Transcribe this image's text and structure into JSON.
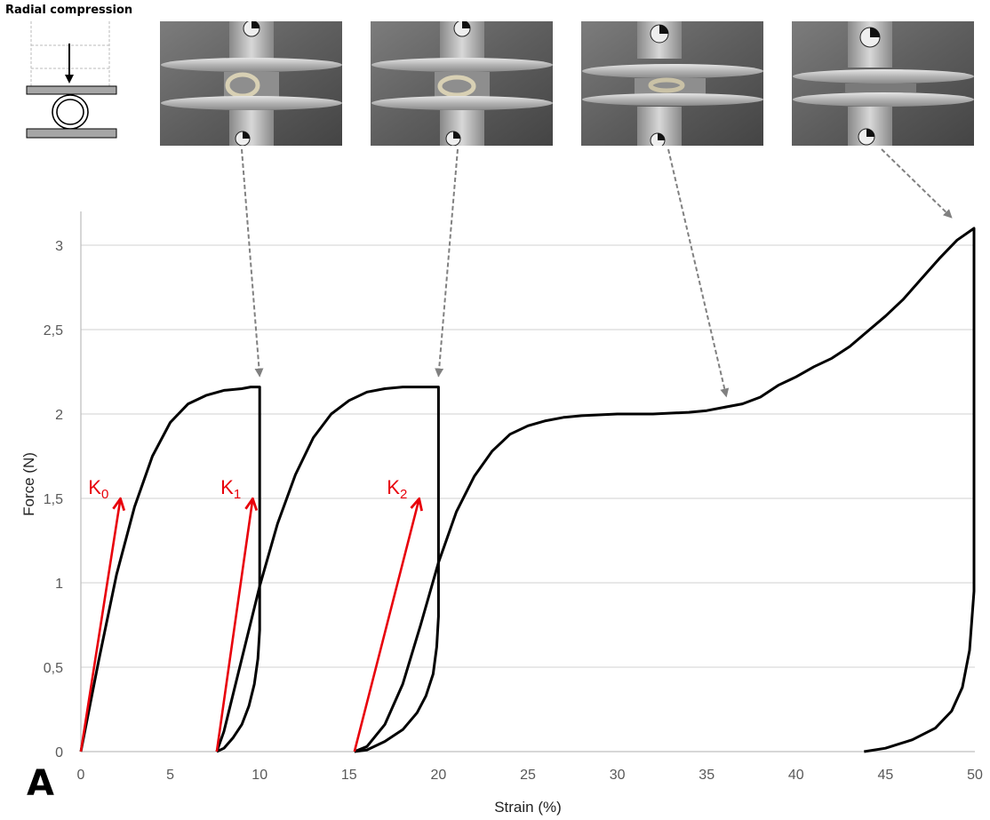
{
  "figure": {
    "heading": "Radial compression",
    "panel_letter": "A"
  },
  "photos": [
    {
      "name": "compression-photo-1",
      "arrow_to": {
        "x": 10,
        "y": 2.16
      }
    },
    {
      "name": "compression-photo-2",
      "arrow_to": {
        "x": 20,
        "y": 2.16
      }
    },
    {
      "name": "compression-photo-3",
      "arrow_to": {
        "x": 36.2,
        "y": 2.04
      }
    },
    {
      "name": "compression-photo-4",
      "arrow_to": {
        "x": 49.2,
        "y": 3.1
      }
    }
  ],
  "colors": {
    "curve": "#000000",
    "stiffness_arrow": "#e8000b",
    "pointer_arrow": "#808080",
    "grid": "#d9d9d9"
  },
  "chart_data": {
    "type": "line",
    "xlabel": "Strain (%)",
    "ylabel": "Force (N)",
    "xlim": [
      0,
      50
    ],
    "ylim": [
      0,
      3.2
    ],
    "xticks": [
      0,
      5,
      10,
      15,
      20,
      25,
      30,
      35,
      40,
      45,
      50
    ],
    "yticks": [
      0,
      0.5,
      1,
      1.5,
      2,
      2.5,
      3
    ],
    "xtick_labels": [
      "0",
      "5",
      "10",
      "15",
      "20",
      "25",
      "30",
      "35",
      "40",
      "45",
      "50"
    ],
    "ytick_labels": [
      "0",
      "0,5",
      "1",
      "1,5",
      "2",
      "2,5",
      "3"
    ],
    "grid": "horizontal",
    "series": [
      {
        "x": [
          0,
          1,
          2,
          3,
          4,
          5,
          6,
          7,
          8,
          9,
          9.5,
          10,
          10,
          10,
          10,
          9.9,
          9.7,
          9.4,
          9.0,
          8.5,
          8.0,
          7.6
        ],
        "y": [
          0,
          0.54,
          1.05,
          1.45,
          1.75,
          1.95,
          2.06,
          2.11,
          2.14,
          2.15,
          2.16,
          2.16,
          1.6,
          1.1,
          0.72,
          0.55,
          0.4,
          0.27,
          0.16,
          0.08,
          0.02,
          0
        ]
      },
      {
        "x": [
          7.6,
          8,
          9,
          10,
          11,
          12,
          13,
          14,
          15,
          16,
          17,
          18,
          19,
          19.5,
          20,
          20,
          20,
          20,
          19.9,
          19.7,
          19.3,
          18.8,
          18,
          17,
          16,
          15.3
        ],
        "y": [
          0,
          0.12,
          0.55,
          0.98,
          1.35,
          1.64,
          1.86,
          2.0,
          2.08,
          2.13,
          2.15,
          2.16,
          2.16,
          2.16,
          2.16,
          1.7,
          1.2,
          0.8,
          0.62,
          0.46,
          0.33,
          0.23,
          0.13,
          0.06,
          0.01,
          0
        ]
      },
      {
        "x": [
          15.3,
          16,
          17,
          18,
          19,
          20,
          21,
          22,
          23,
          24,
          25,
          26,
          27,
          28,
          30,
          32,
          34,
          35,
          36,
          37,
          38,
          39,
          40,
          41,
          42,
          43,
          44,
          45,
          46,
          47,
          48,
          49,
          49.95,
          49.95,
          49.95,
          49.95,
          49.7,
          49.3,
          48.7,
          47.8,
          46.5,
          45,
          43.8
        ],
        "y": [
          0,
          0.03,
          0.16,
          0.4,
          0.75,
          1.12,
          1.42,
          1.63,
          1.78,
          1.88,
          1.93,
          1.96,
          1.98,
          1.99,
          2.0,
          2.0,
          2.01,
          2.02,
          2.04,
          2.06,
          2.1,
          2.17,
          2.22,
          2.28,
          2.33,
          2.4,
          2.49,
          2.58,
          2.68,
          2.8,
          2.92,
          3.03,
          3.1,
          2.0,
          1.3,
          0.95,
          0.6,
          0.38,
          0.24,
          0.14,
          0.07,
          0.02,
          0
        ]
      }
    ],
    "stiffness_arrows": [
      {
        "label": "K",
        "subscript": "0",
        "from": [
          0,
          0
        ],
        "to": [
          2.2,
          1.49
        ]
      },
      {
        "label": "K",
        "subscript": "1",
        "from": [
          7.6,
          0
        ],
        "to": [
          9.6,
          1.49
        ]
      },
      {
        "label": "K",
        "subscript": "2",
        "from": [
          15.3,
          0
        ],
        "to": [
          18.9,
          1.49
        ]
      }
    ]
  }
}
